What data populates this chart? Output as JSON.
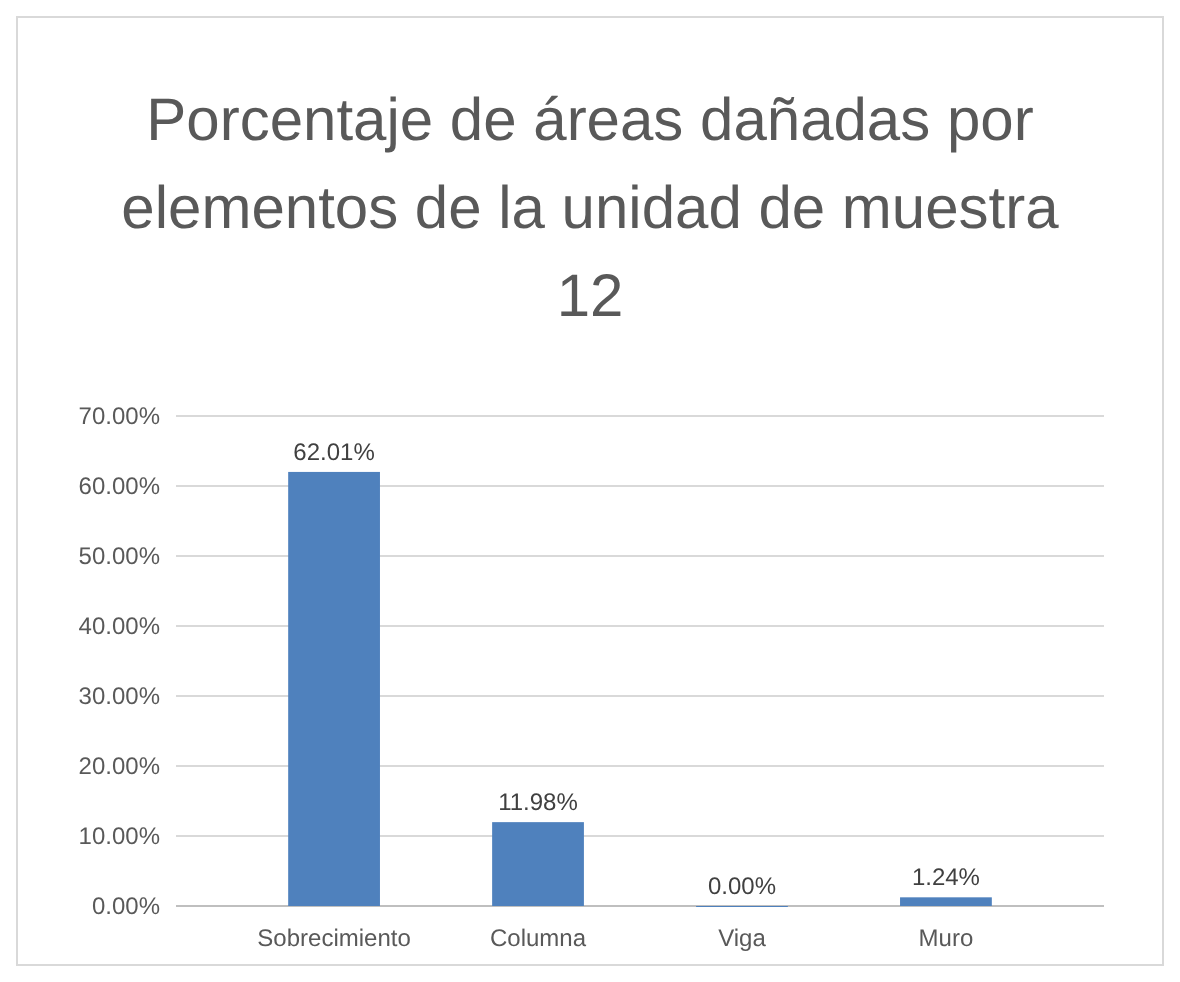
{
  "chart_data": {
    "type": "bar",
    "title": "Porcentaje de áreas dañadas por elementos de la unidad de muestra 12",
    "categories": [
      "Sobrecimiento",
      "Columna",
      "Viga",
      "Muro"
    ],
    "values": [
      62.01,
      11.98,
      0,
      1.24
    ],
    "value_labels": [
      "62.01%",
      "11.98%",
      "0.00%",
      "1.24%"
    ],
    "color": "#4f81bd",
    "ylim": [
      0,
      70
    ],
    "yticks": [
      {
        "value": 0,
        "label": "0.00%"
      },
      {
        "value": 10,
        "label": "10.00%"
      },
      {
        "value": 20,
        "label": "20.00%"
      },
      {
        "value": 30,
        "label": "30.00%"
      },
      {
        "value": 40,
        "label": "40.00%"
      },
      {
        "value": 50,
        "label": "50.00%"
      },
      {
        "value": 60,
        "label": "60.00%"
      },
      {
        "value": 70,
        "label": "70.00%"
      }
    ],
    "grid": true
  }
}
